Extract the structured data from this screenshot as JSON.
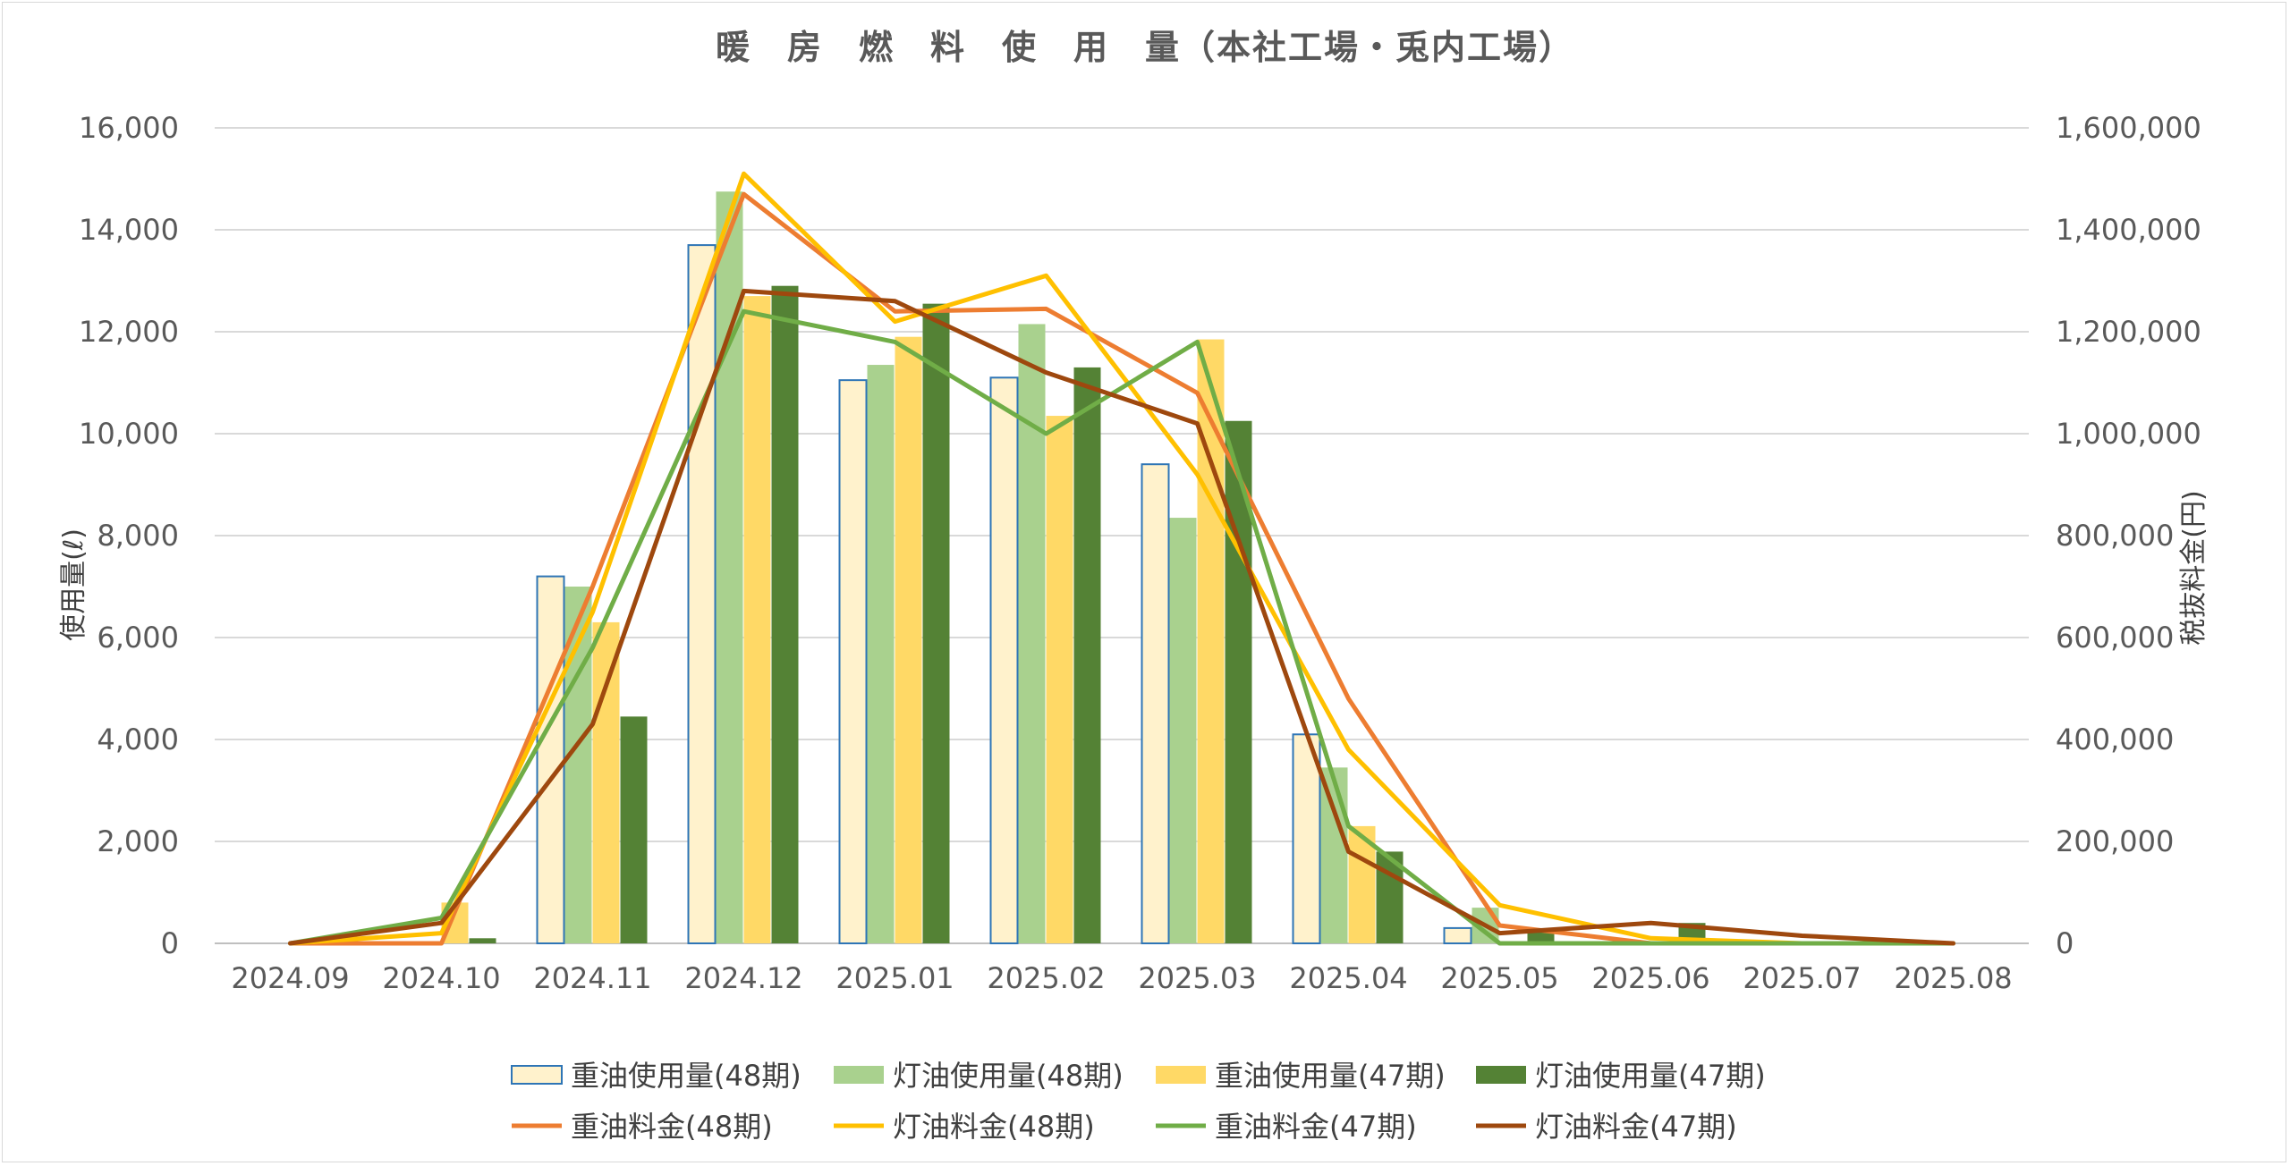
{
  "chart_data": {
    "type": "bar",
    "title": "暖　房　燃　料　使　用　量（本社工場・兎内工場）",
    "categories": [
      "2024.09",
      "2024.10",
      "2024.11",
      "2024.12",
      "2025.01",
      "2025.02",
      "2025.03",
      "2025.04",
      "2025.05",
      "2025.06",
      "2025.07",
      "2025.08"
    ],
    "ylabel": "使用量(ℓ)",
    "y2label": "税抜料金(円)",
    "ylim": [
      0,
      16000
    ],
    "y2lim": [
      0,
      1600000
    ],
    "yticks": [
      "0",
      "2,000",
      "4,000",
      "6,000",
      "8,000",
      "10,000",
      "12,000",
      "14,000",
      "16,000"
    ],
    "y2ticks": [
      "0",
      "200,000",
      "400,000",
      "600,000",
      "800,000",
      "1,000,000",
      "1,200,000",
      "1,400,000",
      "1,600,000"
    ],
    "grid": true,
    "legend_position": "bottom",
    "bar_series": [
      {
        "name": "重油使用量(48期)",
        "color": "#FFF2CC",
        "border": "#2E75B6",
        "values": [
          0,
          0,
          7200,
          13700,
          11050,
          11100,
          9400,
          4100,
          300,
          0,
          0,
          0
        ]
      },
      {
        "name": "灯油使用量(48期)",
        "color": "#A9D18E",
        "values": [
          0,
          0,
          7000,
          14750,
          11350,
          12150,
          8350,
          3450,
          700,
          0,
          0,
          0
        ]
      },
      {
        "name": "重油使用量(47期)",
        "color": "#FFD966",
        "values": [
          0,
          800,
          6300,
          12700,
          11900,
          10350,
          11850,
          2300,
          0,
          0,
          0,
          0
        ]
      },
      {
        "name": "灯油使用量(47期)",
        "color": "#548235",
        "values": [
          0,
          100,
          4450,
          12900,
          12550,
          11300,
          10250,
          1800,
          250,
          400,
          0,
          0
        ]
      }
    ],
    "line_series": [
      {
        "name": "重油料金(48期)",
        "color": "#ED7D31",
        "values": [
          0,
          0,
          700000,
          1470000,
          1240000,
          1245000,
          1080000,
          480000,
          35000,
          0,
          0,
          0
        ]
      },
      {
        "name": "灯油料金(48期)",
        "color": "#FFC000",
        "values": [
          0,
          20000,
          650000,
          1510000,
          1220000,
          1310000,
          920000,
          380000,
          75000,
          10000,
          0,
          0
        ]
      },
      {
        "name": "重油料金(47期)",
        "color": "#70AD47",
        "values": [
          0,
          50000,
          580000,
          1240000,
          1180000,
          1000000,
          1180000,
          230000,
          0,
          0,
          0,
          0
        ]
      },
      {
        "name": "灯油料金(47期)",
        "color": "#9E480E",
        "values": [
          0,
          40000,
          430000,
          1280000,
          1260000,
          1120000,
          1020000,
          180000,
          20000,
          40000,
          15000,
          0
        ]
      }
    ]
  }
}
